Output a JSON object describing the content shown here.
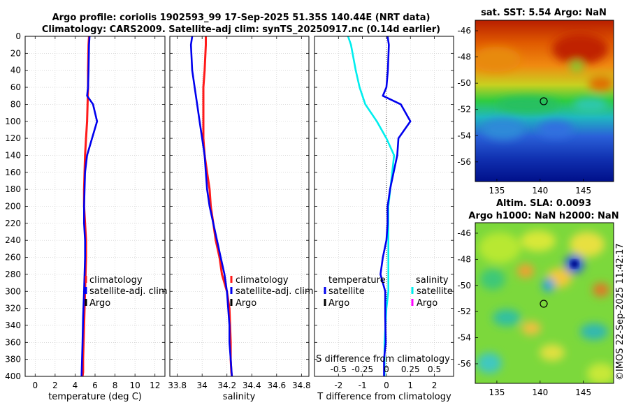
{
  "header": {
    "line1": "Argo profile: coriolis 1902593_99 17-Sep-2025 51.35S 140.44E (NRT data)",
    "line2": "Climatology: CARS2009. Satellite-adj clim: synTS_20250917.nc (0.14d earlier)"
  },
  "stamp": "©IMOS 22-Sep-2025 11:42:17",
  "colors": {
    "climatology": "#ff1a1a",
    "satellite": "#0000ee",
    "argo": "#000000",
    "satellite_s": "#00eeee",
    "argo_s": "#ff00ff"
  },
  "chart_data": [
    {
      "id": "temperature",
      "type": "line",
      "xlabel": "temperature (deg C)",
      "ylabel": "",
      "xlim": [
        -1,
        13
      ],
      "ylim": [
        400,
        0
      ],
      "xticks": [
        0,
        2,
        4,
        6,
        8,
        10,
        12
      ],
      "yticks": [
        0,
        20,
        40,
        60,
        80,
        100,
        120,
        140,
        160,
        180,
        200,
        220,
        240,
        260,
        280,
        300,
        320,
        340,
        360,
        380,
        400
      ],
      "grid": true,
      "legend_position": "lower-right",
      "legend": [
        "climatology",
        "satellite-adj. clim",
        "Argo"
      ],
      "series": [
        {
          "name": "climatology",
          "color": "#ff1a1a",
          "x": [
            5.4,
            5.35,
            5.3,
            5.3,
            5.25,
            5.2,
            5.1,
            5.0,
            4.95,
            4.9,
            4.9,
            5.0,
            5.1,
            5.1,
            5.05,
            5.0,
            4.95,
            4.9,
            4.85,
            4.8,
            4.8,
            4.75
          ],
          "y": [
            0,
            10,
            40,
            60,
            80,
            100,
            120,
            140,
            160,
            180,
            200,
            220,
            240,
            260,
            280,
            300,
            320,
            340,
            360,
            380,
            395,
            400
          ]
        },
        {
          "name": "satellite-adj. clim",
          "color": "#0000ee",
          "x": [
            5.45,
            5.4,
            5.35,
            5.3,
            5.2,
            5.8,
            6.2,
            5.7,
            5.2,
            5.0,
            4.95,
            4.9,
            4.9,
            5.0,
            5.0,
            4.95,
            4.9,
            4.8,
            4.75,
            4.7,
            4.65
          ],
          "y": [
            0,
            10,
            40,
            60,
            70,
            80,
            100,
            120,
            140,
            160,
            180,
            200,
            220,
            240,
            260,
            280,
            300,
            330,
            360,
            380,
            400
          ]
        }
      ]
    },
    {
      "id": "salinity",
      "type": "line",
      "xlabel": "salinity",
      "xlim": [
        33.74,
        34.86
      ],
      "ylim": [
        400,
        0
      ],
      "xticks": [
        33.8,
        34,
        34.2,
        34.4,
        34.6,
        34.8
      ],
      "xticklabels": [
        "33.8",
        "34",
        "34.2",
        "34.4",
        "34.6",
        "34.8"
      ],
      "grid": true,
      "legend_position": "lower-right",
      "legend": [
        "climatology",
        "satellite-adj. clim",
        "Argo"
      ],
      "series": [
        {
          "name": "climatology",
          "color": "#ff1a1a",
          "x": [
            34.03,
            34.03,
            34.02,
            34.01,
            34.01,
            34.01,
            34.01,
            34.02,
            34.04,
            34.06,
            34.07,
            34.09,
            34.11,
            34.14,
            34.16,
            34.2,
            34.22,
            34.225,
            34.23,
            34.23,
            34.235,
            34.24
          ],
          "y": [
            0,
            10,
            40,
            60,
            80,
            100,
            120,
            140,
            160,
            180,
            200,
            220,
            240,
            260,
            280,
            300,
            320,
            340,
            360,
            380,
            395,
            400
          ]
        },
        {
          "name": "satellite-adj. clim",
          "color": "#0000ee",
          "x": [
            33.92,
            33.91,
            33.92,
            33.94,
            33.96,
            33.98,
            34.0,
            34.02,
            34.03,
            34.04,
            34.06,
            34.09,
            34.12,
            34.15,
            34.18,
            34.2,
            34.21,
            34.22,
            34.22,
            34.23,
            34.24
          ],
          "y": [
            0,
            10,
            40,
            60,
            80,
            100,
            120,
            140,
            160,
            180,
            200,
            220,
            240,
            260,
            280,
            300,
            320,
            340,
            360,
            380,
            400
          ]
        }
      ]
    },
    {
      "id": "difference",
      "type": "line",
      "xlabel": "T difference from climatology",
      "xlabel_top": "S difference from climatology",
      "xlim": [
        -3,
        2.8
      ],
      "ylim": [
        400,
        0
      ],
      "xticks": [
        -2,
        -1,
        0,
        1,
        2
      ],
      "s_xticks": [
        -0.5,
        -0.25,
        0,
        0.25,
        0.5
      ],
      "s_xticklabels": [
        "-0.5",
        "-0.25",
        "0",
        "0.25",
        "0.5"
      ],
      "grid": true,
      "legend_t_title": "temperature",
      "legend_s_title": "salinity",
      "legend_t": [
        "satellite",
        "Argo"
      ],
      "legend_s": [
        "satellite",
        "Argo"
      ],
      "series": [
        {
          "name": "T satellite",
          "color": "#0000ee",
          "x": [
            0.05,
            0.1,
            0.06,
            0.0,
            -0.15,
            0.6,
            1.0,
            0.5,
            0.45,
            0.3,
            0.15,
            0.05,
            0.05,
            0.0,
            -0.15,
            -0.25,
            -0.05,
            -0.05,
            -0.03,
            -0.1,
            -0.1
          ],
          "y": [
            0,
            10,
            40,
            60,
            70,
            80,
            100,
            120,
            140,
            160,
            180,
            200,
            220,
            240,
            260,
            280,
            300,
            330,
            360,
            380,
            400
          ]
        },
        {
          "name": "S satellite",
          "color": "#00eeee",
          "x": [
            -0.4,
            -0.37,
            -0.32,
            -0.28,
            -0.22,
            -0.1,
            0.0,
            0.08,
            0.06,
            0.04,
            0.02,
            0.02,
            0.02,
            0.02,
            0.02,
            0.02,
            0.0,
            -0.01,
            -0.02,
            -0.02,
            -0.02
          ],
          "y": [
            0,
            10,
            40,
            60,
            80,
            100,
            120,
            140,
            160,
            180,
            200,
            220,
            240,
            260,
            280,
            300,
            320,
            340,
            360,
            380,
            400
          ]
        }
      ]
    },
    {
      "id": "sst_map",
      "type": "heatmap",
      "title": "sat. SST: 5.54 Argo: NaN",
      "xlim": [
        132.5,
        148.5
      ],
      "ylim": [
        -57.5,
        -45.2
      ],
      "xticks": [
        135,
        140,
        145
      ],
      "yticks": [
        -46,
        -48,
        -50,
        -52,
        -54,
        -56
      ],
      "marker": {
        "lon": 140.44,
        "lat": -51.35
      }
    },
    {
      "id": "sla_map",
      "type": "heatmap",
      "title_line1": "Altim. SLA: 0.0093",
      "title_line2": "Argo h1000: NaN h2000: NaN",
      "xlim": [
        132.5,
        148.5
      ],
      "ylim": [
        -57.5,
        -45.2
      ],
      "xticks": [
        135,
        140,
        145
      ],
      "yticks": [
        -46,
        -48,
        -50,
        -52,
        -54,
        -56
      ],
      "marker": {
        "lon": 140.44,
        "lat": -51.35
      }
    }
  ]
}
